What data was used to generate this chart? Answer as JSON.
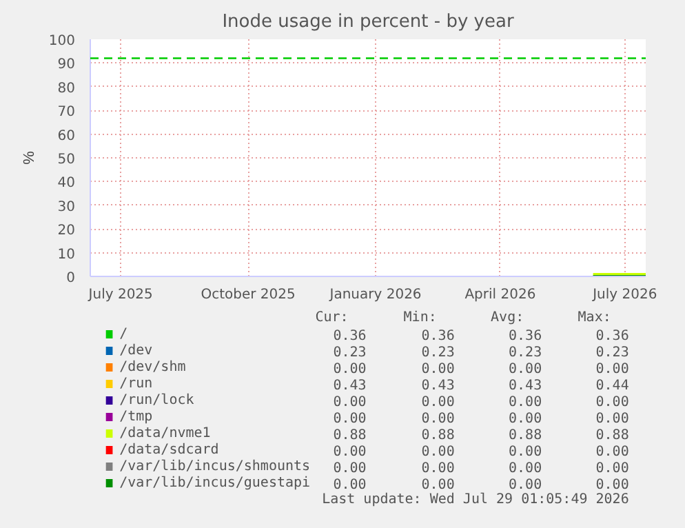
{
  "chart_data": {
    "type": "line",
    "title": "Inode usage in percent - by year",
    "ylabel": "%",
    "xlim": [
      "2025-06-23",
      "2026-07-29"
    ],
    "xticks": [
      {
        "value": "2025-07-15",
        "label": "July 2025"
      },
      {
        "value": "2025-10-15",
        "label": "October 2025"
      },
      {
        "value": "2026-01-15",
        "label": "January 2026"
      },
      {
        "value": "2026-04-15",
        "label": "April 2026"
      },
      {
        "value": "2026-07-14",
        "label": "July 2026"
      }
    ],
    "ylim": [
      0,
      100
    ],
    "yticks": [
      0,
      10,
      20,
      30,
      40,
      50,
      60,
      70,
      80,
      90,
      100
    ],
    "grid": true,
    "legend": "bottom",
    "series": [
      {
        "name": "/",
        "color": "#00cc00"
      },
      {
        "name": "/dev",
        "color": "#0066b3"
      },
      {
        "name": "/dev/shm",
        "color": "#ff8000"
      },
      {
        "name": "/run",
        "color": "#ffcc00"
      },
      {
        "name": "/run/lock",
        "color": "#330099"
      },
      {
        "name": "/tmp",
        "color": "#990099"
      },
      {
        "name": "/data/nvme1",
        "color": "#ccff00",
        "x": [
          "2026-06-21",
          "2026-07-29"
        ],
        "values": [
          0.88,
          0.88
        ]
      },
      {
        "name": "/data/sdcard",
        "color": "#ff0000"
      },
      {
        "name": "/var/lib/incus/shmounts",
        "color": "#808080"
      },
      {
        "name": "/var/lib/incus/guestapi",
        "color": "#008f00",
        "x": [
          "2026-06-21",
          "2026-07-29"
        ],
        "values": [
          0,
          0
        ]
      }
    ],
    "ref_lines": [
      {
        "axis": "y",
        "value": 92,
        "label": null,
        "color": "#00cc00",
        "line_style": "dashed"
      }
    ],
    "annotations": [
      "Cur:",
      "Min:",
      "Avg:",
      "Max:",
      "0.36",
      "0.36",
      "0.36",
      "0.36",
      "0.23",
      "0.23",
      "0.23",
      "0.23",
      "0.00",
      "0.00",
      "0.00",
      "0.00",
      "0.43",
      "0.43",
      "0.43",
      "0.44",
      "0.00",
      "0.00",
      "0.00",
      "0.00",
      "0.00",
      "0.00",
      "0.00",
      "0.00",
      "0.88",
      "0.88",
      "0.88",
      "0.88",
      "0.00",
      "0.00",
      "0.00",
      "0.00",
      "0.00",
      "0.00",
      "0.00",
      "0.00",
      "0.00",
      "0.00",
      "0.00",
      "0.00",
      "Last update: Wed Jul 29 01:05:49 2026"
    ]
  }
}
